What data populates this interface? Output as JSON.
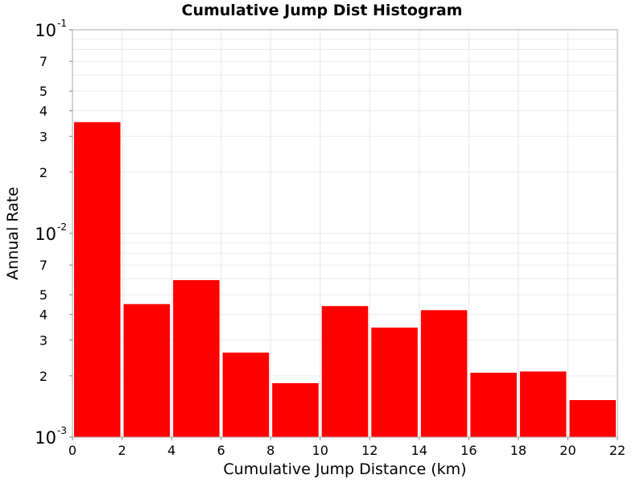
{
  "chart_data": {
    "type": "bar",
    "title": "Cumulative Jump Dist Histogram",
    "xlabel": "Cumulative Jump Distance (km)",
    "ylabel": "Annual Rate",
    "x_scale": "linear",
    "y_scale": "log",
    "xlim": [
      0,
      22
    ],
    "ylim": [
      0.001,
      0.1
    ],
    "grid": true,
    "legend": "none",
    "bar_color": "#ff0000",
    "x_ticks": [
      "0",
      "2",
      "4",
      "6",
      "8",
      "10",
      "12",
      "14",
      "16",
      "18",
      "20",
      "22"
    ],
    "y_ticks": [
      {
        "value": 0.1,
        "base": "10",
        "exp": "-1"
      },
      {
        "value": 0.07,
        "label": "7"
      },
      {
        "value": 0.05,
        "label": "5"
      },
      {
        "value": 0.04,
        "label": "4"
      },
      {
        "value": 0.03,
        "label": "3"
      },
      {
        "value": 0.02,
        "label": "2"
      },
      {
        "value": 0.01,
        "base": "10",
        "exp": "-2"
      },
      {
        "value": 0.007,
        "label": "7"
      },
      {
        "value": 0.005,
        "label": "5"
      },
      {
        "value": 0.004,
        "label": "4"
      },
      {
        "value": 0.003,
        "label": "3"
      },
      {
        "value": 0.002,
        "label": "2"
      },
      {
        "value": 0.001,
        "base": "10",
        "exp": "-3"
      }
    ],
    "bins": [
      {
        "x_start": 0,
        "x_end": 2,
        "value": 0.0352
      },
      {
        "x_start": 2,
        "x_end": 4,
        "value": 0.0045
      },
      {
        "x_start": 4,
        "x_end": 6,
        "value": 0.0059
      },
      {
        "x_start": 6,
        "x_end": 8,
        "value": 0.0026
      },
      {
        "x_start": 8,
        "x_end": 10,
        "value": 0.00184
      },
      {
        "x_start": 10,
        "x_end": 12,
        "value": 0.0044
      },
      {
        "x_start": 12,
        "x_end": 14,
        "value": 0.00345
      },
      {
        "x_start": 14,
        "x_end": 16,
        "value": 0.0042
      },
      {
        "x_start": 16,
        "x_end": 18,
        "value": 0.00207
      },
      {
        "x_start": 18,
        "x_end": 20,
        "value": 0.0021
      },
      {
        "x_start": 20,
        "x_end": 22,
        "value": 0.00152
      }
    ]
  }
}
